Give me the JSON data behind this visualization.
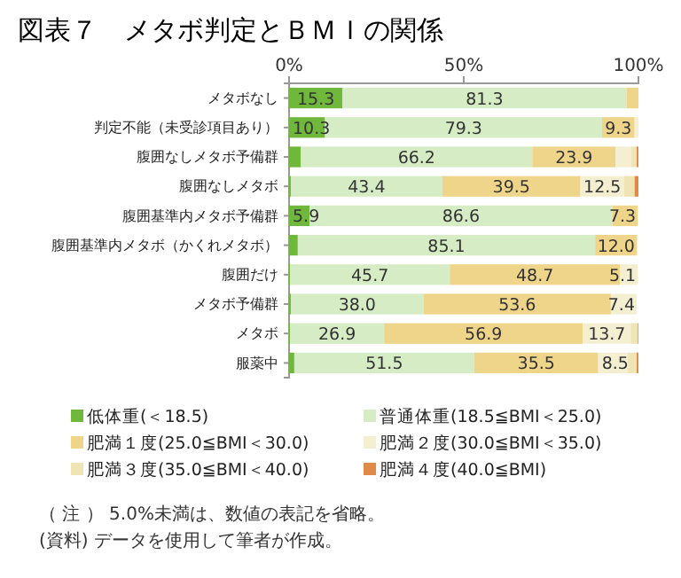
{
  "chart_data": {
    "type": "bar",
    "orientation": "horizontal",
    "stacked": true,
    "title": "図表７　メタボ判定とＢＭＩの関係",
    "categories": [
      "メタボなし",
      "判定不能（未受診項目あり）",
      "腹囲なしメタボ予備群",
      "腹囲なしメタボ",
      "腹囲基準内メタボ予備群",
      "腹囲基準内メタボ（かくれメタボ）",
      "腹囲だけ",
      "メタボ予備群",
      "メタボ",
      "服薬中"
    ],
    "xlim": [
      0,
      100
    ],
    "xticks": [
      {
        "value": 0,
        "label": "0%"
      },
      {
        "value": 50,
        "label": "50%"
      },
      {
        "value": 100,
        "label": "100%"
      }
    ],
    "legend": "bottom",
    "grid": false,
    "series": [
      {
        "name": "低体重(＜18.5)",
        "color": "#70b83c",
        "values": [
          15.3,
          10.3,
          3.4,
          0.5,
          5.9,
          2.5,
          0.3,
          0.5,
          0.3,
          1.5
        ],
        "value_labels": [
          "15.3",
          "10.3",
          null,
          null,
          "5.9",
          null,
          null,
          null,
          null,
          null
        ]
      },
      {
        "name": "普通体重(18.5≦BMI＜25.0)",
        "color": "#d6ecc4",
        "values": [
          81.3,
          79.3,
          66.2,
          43.4,
          86.6,
          85.1,
          45.7,
          38.0,
          26.9,
          51.5
        ],
        "value_labels": [
          "81.3",
          "79.3",
          "66.2",
          "43.4",
          "86.6",
          "85.1",
          "45.7",
          "38.0",
          "26.9",
          "51.5"
        ]
      },
      {
        "name": "肥満１度(25.0≦BMI＜30.0)",
        "color": "#efd58a",
        "values": [
          3.4,
          9.3,
          23.9,
          39.5,
          7.3,
          12.0,
          48.7,
          53.6,
          56.9,
          35.5
        ],
        "value_labels": [
          null,
          "9.3",
          "23.9",
          "39.5",
          "7.3",
          "12.0",
          "48.7",
          "53.6",
          "56.9",
          "35.5"
        ]
      },
      {
        "name": "肥満２度(30.0≦BMI＜35.0)",
        "color": "#f5efd2",
        "values": [
          0,
          1.1,
          4.5,
          12.5,
          null,
          null,
          5.1,
          7.4,
          13.7,
          8.5
        ],
        "value_labels": [
          null,
          null,
          null,
          "12.5",
          null,
          null,
          "5.1",
          "7.4",
          "13.7",
          "8.5"
        ]
      },
      {
        "name": "肥満３度(35.0≦BMI＜40.0)",
        "color": "#efe4b4",
        "values": [
          0,
          0,
          1.5,
          3.0,
          0,
          0,
          null,
          null,
          2.0,
          2.5
        ]
      },
      {
        "name": "肥満４度(40.0≦BMI)",
        "color": "#e08a4a",
        "values": [
          0,
          0,
          0.5,
          1.1,
          0,
          0,
          0,
          0,
          0.2,
          0.5
        ]
      }
    ],
    "annotations": [
      "（ 注 ） 5.0%未満は、数値の表記を省略。",
      "(資料) データを使用して筆者が作成。"
    ]
  }
}
